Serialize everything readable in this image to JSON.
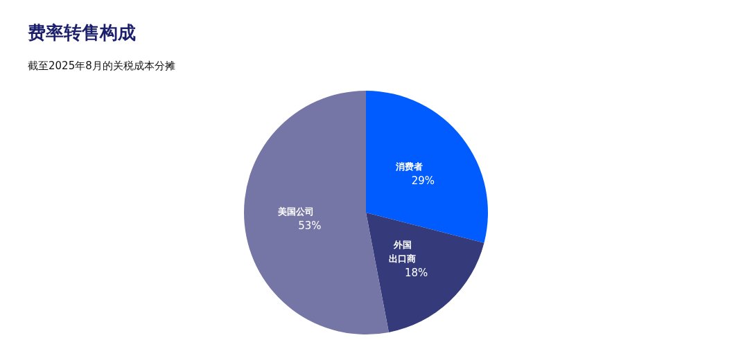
{
  "chart_data": {
    "type": "pie",
    "title": "费率转售构成",
    "subtitle": "截至2025年8月的关税成本分摊",
    "categories": [
      "消费者",
      "外国出口商",
      "美国公司"
    ],
    "values": [
      29,
      18,
      53
    ],
    "value_labels": [
      "29%",
      "18%",
      "53%"
    ],
    "colors": [
      "#005cff",
      "#343a7a",
      "#7676a6"
    ],
    "legend": false
  }
}
